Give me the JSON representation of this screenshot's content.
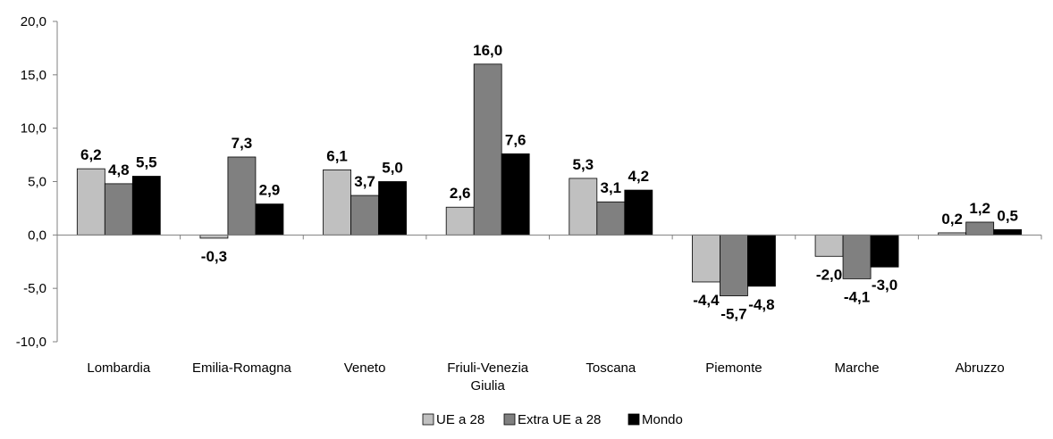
{
  "chart_data": {
    "type": "bar",
    "categories": [
      "Lombardia",
      "Emilia-Romagna",
      "Veneto",
      "Friuli-Venezia Giulia",
      "Toscana",
      "Piemonte",
      "Marche",
      "Abruzzo"
    ],
    "series": [
      {
        "name": "UE a 28",
        "color": "#c0c0c0",
        "values": [
          6.2,
          -0.3,
          6.1,
          2.6,
          5.3,
          -4.4,
          -2.0,
          0.2
        ],
        "labels": [
          "6,2",
          "-0,3",
          "6,1",
          "2,6",
          "5,3",
          "-4,4",
          "-2,0",
          "0,2"
        ]
      },
      {
        "name": "Extra UE a 28",
        "color": "#808080",
        "values": [
          4.8,
          7.3,
          3.7,
          16.0,
          3.1,
          -5.7,
          -4.1,
          1.2
        ],
        "labels": [
          "4,8",
          "7,3",
          "3,7",
          "16,0",
          "3,1",
          "-5,7",
          "-4,1",
          "1,2"
        ]
      },
      {
        "name": "Mondo",
        "color": "#000000",
        "values": [
          5.5,
          2.9,
          5.0,
          7.6,
          4.2,
          -4.8,
          -3.0,
          0.5
        ],
        "labels": [
          "5,5",
          "2,9",
          "5,0",
          "7,6",
          "4,2",
          "-4,8",
          "-3,0",
          "0,5"
        ]
      }
    ],
    "ylim": [
      -10,
      20
    ],
    "yticks": [
      -10,
      -5,
      0,
      5,
      10,
      15,
      20
    ],
    "ytick_labels": [
      "-10,0",
      "-5,0",
      "0,0",
      "5,0",
      "10,0",
      "15,0",
      "20,0"
    ],
    "grid": false,
    "legend_position": "bottom"
  }
}
